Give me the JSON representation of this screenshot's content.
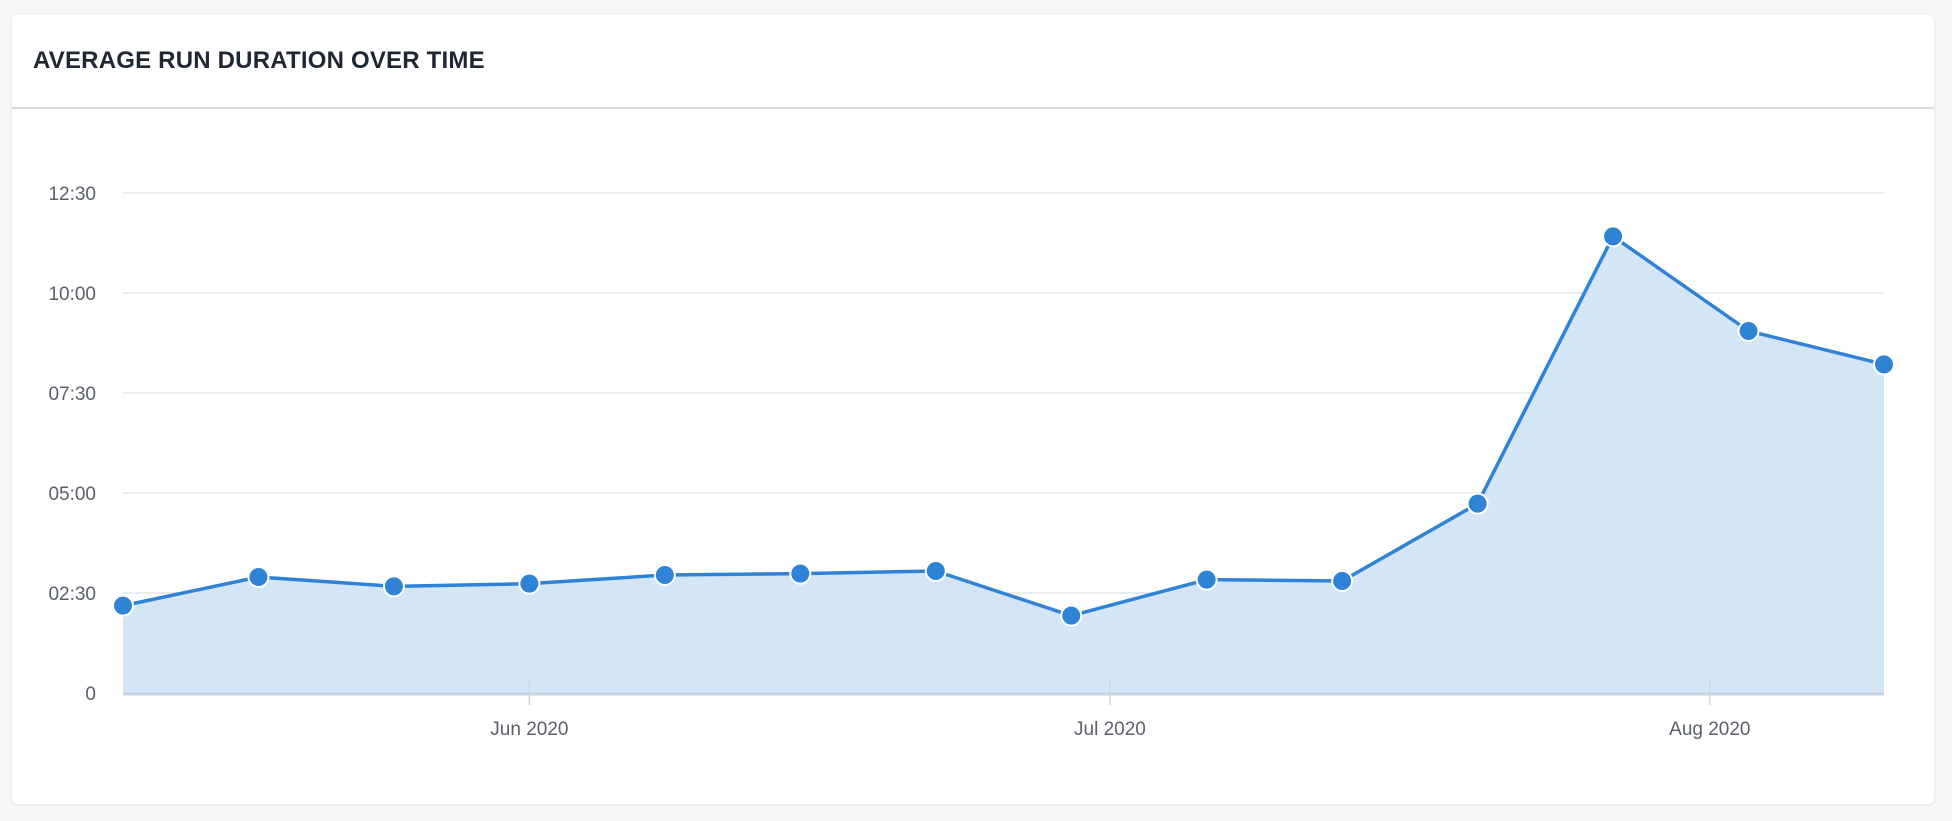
{
  "chart_data": {
    "type": "area",
    "title": "AVERAGE RUN DURATION OVER TIME",
    "x": [
      "2020-05-11",
      "2020-05-18",
      "2020-05-25",
      "2020-06-01",
      "2020-06-08",
      "2020-06-15",
      "2020-06-22",
      "2020-06-29",
      "2020-07-06",
      "2020-07-13",
      "2020-07-20",
      "2020-07-27",
      "2020-08-03",
      "2020-08-10"
    ],
    "values": [
      "02:11",
      "02:54",
      "02:40",
      "02:44",
      "02:57",
      "02:59",
      "03:03",
      "01:56",
      "02:50",
      "02:48",
      "04:44",
      "11:25",
      "09:03",
      "08:13"
    ],
    "ylim": [
      "0",
      "12:30"
    ],
    "y_ticks": [
      "0",
      "02:30",
      "05:00",
      "07:30",
      "10:00",
      "12:30"
    ],
    "x_ticks": [
      {
        "date": "2020-06-01",
        "label": "Jun 2020"
      },
      {
        "date": "2020-07-01",
        "label": "Jul 2020"
      },
      {
        "date": "2020-08-01",
        "label": "Aug 2020"
      }
    ],
    "grid": true,
    "colors": {
      "line": "#2f83d6",
      "fill": "#d4e5f5",
      "grid": "#e3e5e8"
    }
  }
}
